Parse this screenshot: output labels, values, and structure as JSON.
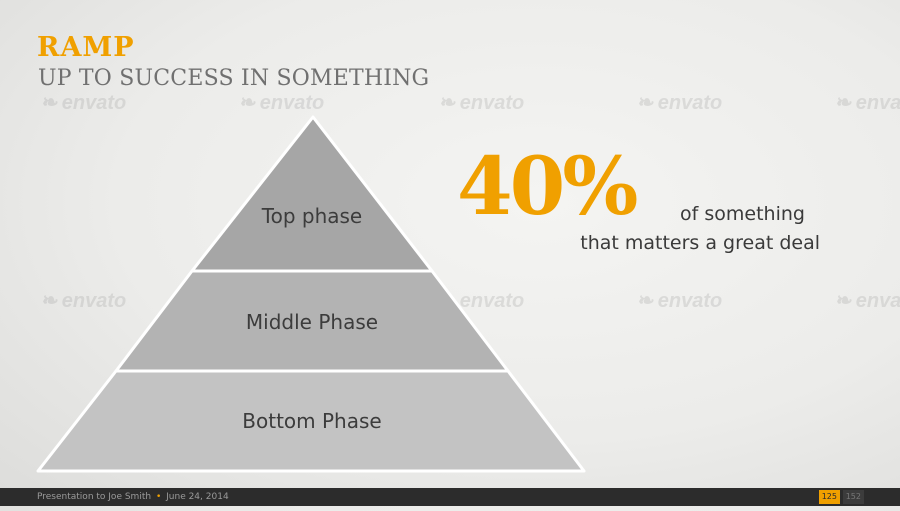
{
  "colors": {
    "accent": "#f0a000",
    "pyramid_top": "#a6a6a6",
    "pyramid_middle": "#b3b3b3",
    "pyramid_bottom": "#c3c3c3",
    "pyramid_stroke": "#ffffff"
  },
  "slide": {
    "title": "RAMP",
    "subtitle": "UP TO SUCCESS IN SOMETHING"
  },
  "pyramid": {
    "levels": [
      {
        "label": "Top phase"
      },
      {
        "label": "Middle Phase"
      },
      {
        "label": "Bottom Phase"
      }
    ]
  },
  "stat": {
    "value": "40%",
    "caption_line1": "of something",
    "caption_line2": "that matters a great deal"
  },
  "watermark": {
    "text": "envato",
    "icon": "envato-leaf-icon",
    "icon_glyph": "❧"
  },
  "footer": {
    "presentation_label": "Presentation to Joe Smith",
    "separator": "•",
    "date": "June 24, 2014",
    "page_current": "125",
    "page_total": "152"
  }
}
